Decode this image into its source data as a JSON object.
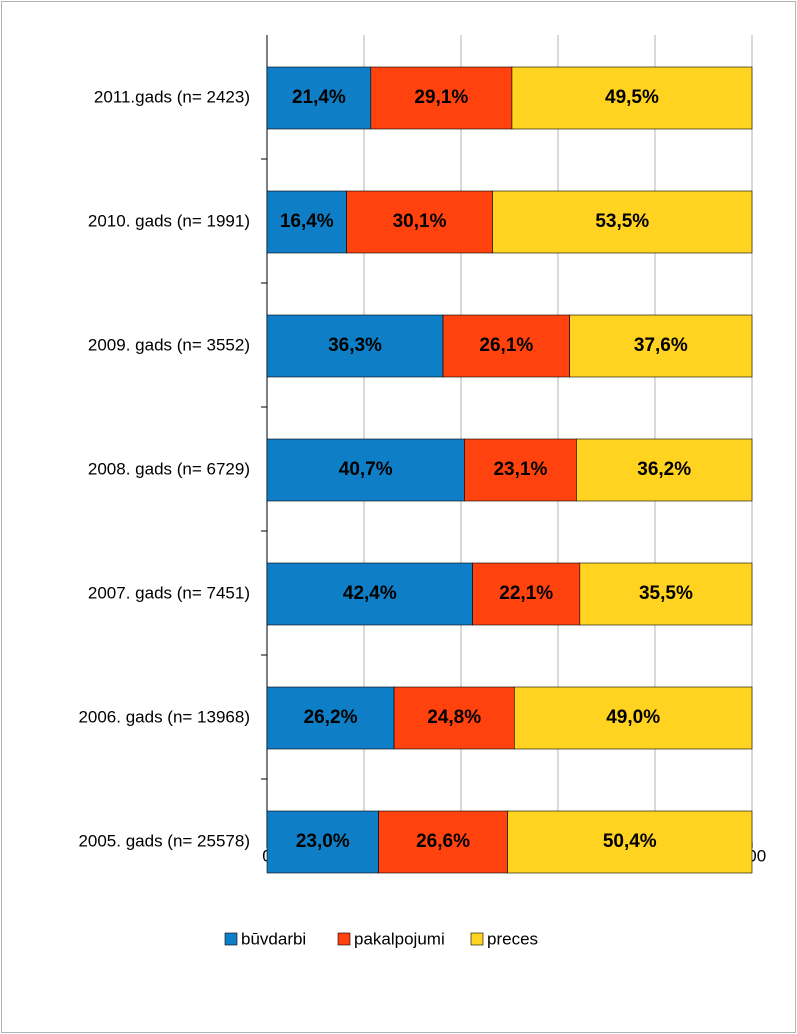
{
  "chart_data": {
    "type": "stacked_barh",
    "categories": [
      "2011.gads (n= 2423)",
      "2010. gads (n= 1991)",
      "2009. gads (n= 3552)",
      "2008. gads (n= 6729)",
      "2007. gads (n= 7451)",
      "2006. gads (n= 13968)",
      "2005. gads (n= 25578)"
    ],
    "series": [
      {
        "name": "būvdarbi",
        "color": "#0e7fc6",
        "values": [
          21.4,
          16.4,
          36.3,
          40.7,
          42.4,
          26.2,
          23.0
        ],
        "value_labels": [
          "21,4%",
          "16,4%",
          "36,3%",
          "40,7%",
          "42,4%",
          "26,2%",
          "23,0%"
        ]
      },
      {
        "name": "pakalpojumi",
        "color": "#ff420e",
        "values": [
          29.1,
          30.1,
          26.1,
          23.1,
          22.1,
          24.8,
          26.6
        ],
        "value_labels": [
          "29,1%",
          "30,1%",
          "26,1%",
          "23,1%",
          "22,1%",
          "24,8%",
          "26,6%"
        ]
      },
      {
        "name": "preces",
        "color": "#ffd320",
        "values": [
          49.5,
          53.5,
          37.6,
          36.2,
          35.5,
          49.0,
          50.4
        ],
        "value_labels": [
          "49,5%",
          "53,5%",
          "37,6%",
          "36,2%",
          "35,5%",
          "49,0%",
          "50,4%"
        ]
      }
    ],
    "xlim": [
      0,
      100
    ],
    "xticks": [
      0,
      20,
      40,
      60,
      80,
      100
    ],
    "grid": true,
    "legend": "bottom"
  }
}
